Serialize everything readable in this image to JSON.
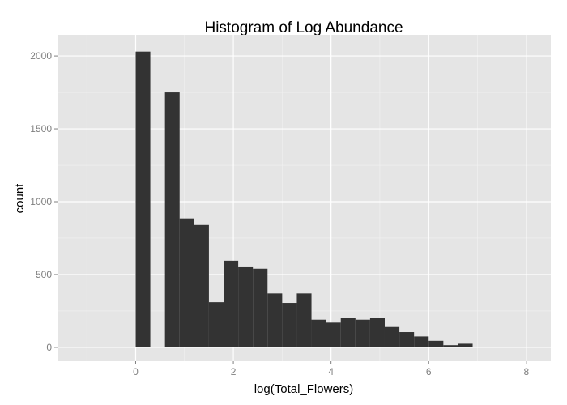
{
  "chart_data": {
    "type": "bar",
    "title": "Histogram of Log Abundance",
    "xlabel": "log(Total_Flowers)",
    "ylabel": "count",
    "xlim": [
      -1.6,
      8.5
    ],
    "ylim": [
      -95,
      2145
    ],
    "x_ticks": [
      0,
      2,
      4,
      6,
      8
    ],
    "y_ticks": [
      0,
      500,
      1000,
      1500,
      2000
    ],
    "bin_width": 0.3,
    "bin_start": 0,
    "values": [
      2030,
      5,
      1750,
      885,
      840,
      310,
      595,
      550,
      540,
      370,
      305,
      370,
      190,
      170,
      205,
      190,
      200,
      140,
      105,
      75,
      45,
      15,
      25,
      5
    ],
    "grid": true,
    "background": "#e5e5e5",
    "grid_major_color": "#ffffff",
    "grid_minor_color": "#f2f2f2",
    "bar_color": "#333333"
  }
}
